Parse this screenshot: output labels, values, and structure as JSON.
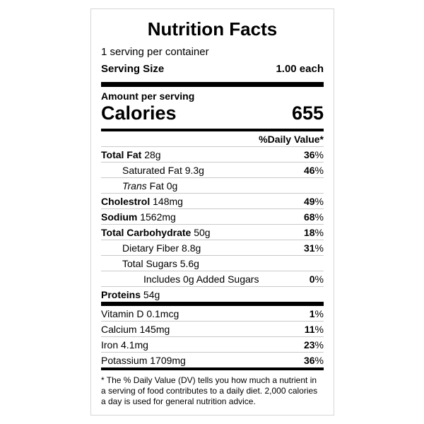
{
  "nutrition_label": {
    "title": "Nutrition Facts",
    "servings_per_container": "1 serving per container",
    "serving_size": {
      "label": "Serving Size",
      "value": "1.00 each"
    },
    "amount_per_serving": "Amount per serving",
    "calories": {
      "label": "Calories",
      "value": "655"
    },
    "daily_value_header": "%Daily Value*",
    "nutrients": [
      {
        "name": "Total Fat",
        "amount": "28g",
        "dv_num": "36",
        "dv_sign": "%",
        "bold": true,
        "indent": 0
      },
      {
        "name": "Saturated Fat",
        "amount": "9.3g",
        "dv_num": "46",
        "dv_sign": "%",
        "bold": false,
        "indent": 1
      },
      {
        "pre_italic": "Trans",
        "name": "Fat",
        "amount": "0g",
        "dv_num": "",
        "dv_sign": "",
        "bold": false,
        "indent": 1
      },
      {
        "name": "Cholestrol",
        "amount": "148mg",
        "dv_num": "49",
        "dv_sign": "%",
        "bold": true,
        "indent": 0
      },
      {
        "name": "Sodium",
        "amount": "1562mg",
        "dv_num": "68",
        "dv_sign": "%",
        "bold": true,
        "indent": 0
      },
      {
        "name": "Total Carbohydrate",
        "amount": "50g",
        "dv_num": "18",
        "dv_sign": "%",
        "bold": true,
        "indent": 0
      },
      {
        "name": "Dietary Fiber",
        "amount": "8.8g",
        "dv_num": "31",
        "dv_sign": "%",
        "bold": false,
        "indent": 1
      },
      {
        "name": "Total Sugars",
        "amount": "5.6g",
        "dv_num": "",
        "dv_sign": "",
        "bold": false,
        "indent": 1
      },
      {
        "name": "Includes 0g Added Sugars",
        "amount": "",
        "dv_num": "0",
        "dv_sign": "%",
        "bold": false,
        "indent": 2
      },
      {
        "name": "Proteins",
        "amount": "54g",
        "dv_num": "",
        "dv_sign": "",
        "bold": true,
        "indent": 0
      }
    ],
    "micronutrients": [
      {
        "name": "Vitamin D",
        "amount": "0.1mcg",
        "dv_num": "1",
        "dv_sign": "%",
        "bold": false,
        "indent": 0
      },
      {
        "name": "Calcium",
        "amount": "145mg",
        "dv_num": "11",
        "dv_sign": "%",
        "bold": false,
        "indent": 0
      },
      {
        "name": "Iron",
        "amount": "4.1mg",
        "dv_num": "23",
        "dv_sign": "%",
        "bold": false,
        "indent": 0
      },
      {
        "name": "Potassium",
        "amount": "1709mg",
        "dv_num": "36",
        "dv_sign": "%",
        "bold": false,
        "indent": 0
      }
    ],
    "footnote": "* The % Daily Value (DV) tells you how much a nutrient in a serving of food contributes to a daily diet. 2,000 calories a day is used for general nutrition advice."
  }
}
